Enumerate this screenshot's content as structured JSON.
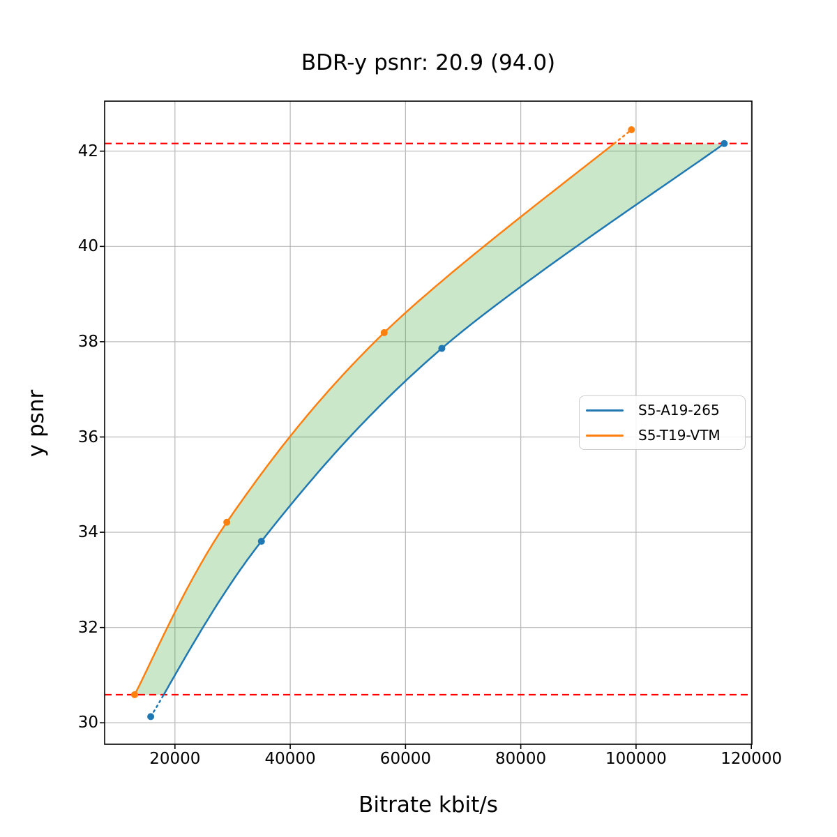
{
  "figure": {
    "background": "#ffffff"
  },
  "chart_data": {
    "type": "line",
    "title": "BDR-y psnr: 20.9 (94.0)",
    "xlabel": "Bitrate kbit/s",
    "ylabel": "y psnr",
    "xlim": [
      7800,
      120100
    ],
    "ylim": [
      29.55,
      43.05
    ],
    "grid": true,
    "grid_color": "#b8b8b8",
    "axis_color": "#000000",
    "x_ticks": [
      20000,
      40000,
      60000,
      80000,
      100000,
      120000
    ],
    "x_tick_labels": [
      "20000",
      "40000",
      "60000",
      "80000",
      "100000",
      "120000"
    ],
    "y_ticks": [
      30,
      32,
      34,
      36,
      38,
      40,
      42
    ],
    "y_tick_labels": [
      "30",
      "32",
      "34",
      "36",
      "38",
      "40",
      "42"
    ],
    "series": [
      {
        "name": "S5-A19-265",
        "color": "#1f77b4",
        "points": [
          [
            15800,
            30.13
          ],
          [
            35000,
            33.81
          ],
          [
            66300,
            37.86
          ],
          [
            115300,
            42.16
          ]
        ]
      },
      {
        "name": "S5-T19-VTM",
        "color": "#ff7f0e",
        "points": [
          [
            13000,
            30.59
          ],
          [
            29000,
            34.21
          ],
          [
            56300,
            38.19
          ],
          [
            99200,
            42.45
          ]
        ]
      }
    ],
    "overlap_band": {
      "y_high": 42.16,
      "y_low": 30.59,
      "line_color": "#ff0000",
      "line_style": "dashed"
    },
    "fill_between": {
      "color": "#2ca02c",
      "alpha": 0.25
    },
    "legend": {
      "position": "right-center",
      "entries": [
        "S5-A19-265",
        "S5-T19-VTM"
      ]
    }
  }
}
